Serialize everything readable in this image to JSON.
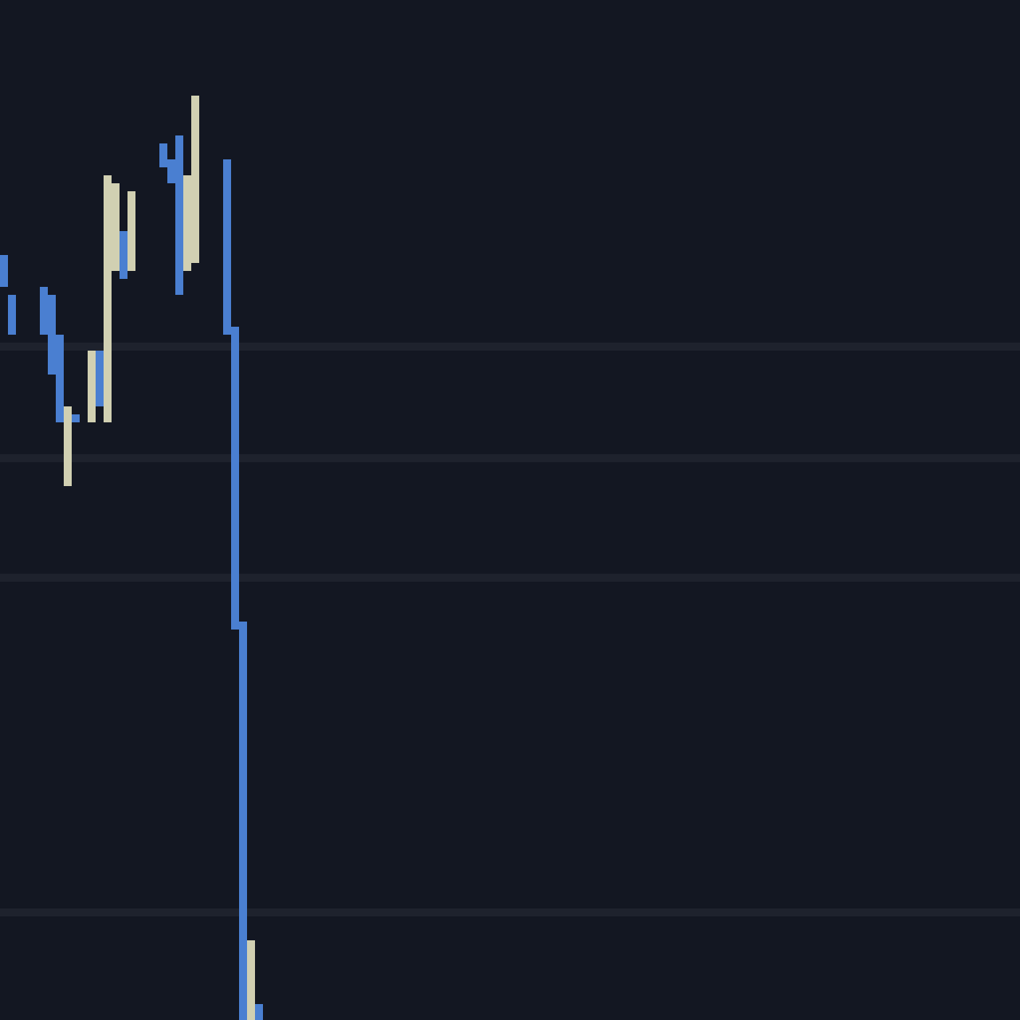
{
  "chart_data": {
    "type": "bar",
    "grid": true,
    "legend": "none",
    "xlim": [
      0,
      128
    ],
    "ylim": [
      0,
      128
    ],
    "colors": {
      "background": "#131722",
      "grid": "#1e222d",
      "up": "#d1d0b2",
      "down": "#4a7fd1"
    },
    "gridlines": [
      84,
      70,
      55,
      13
    ],
    "candles": [
      {
        "x": 0,
        "y0": 92.0,
        "y1": 96.0,
        "dir": "down"
      },
      {
        "x": 1,
        "y0": 91.0,
        "y1": 86.0,
        "dir": "down"
      },
      {
        "x": 5,
        "y0": 92.0,
        "y1": 86.0,
        "dir": "down"
      },
      {
        "x": 6,
        "y0": 91.0,
        "y1": 81.0,
        "dir": "down"
      },
      {
        "x": 7,
        "y0": 86.0,
        "y1": 75.0,
        "dir": "down"
      },
      {
        "x": 8,
        "y0": 77.0,
        "y1": 67.0,
        "dir": "up"
      },
      {
        "x": 9,
        "y0": 76.0,
        "y1": 75.0,
        "dir": "down"
      },
      {
        "x": 11,
        "y0": 75.0,
        "y1": 84.0,
        "dir": "up"
      },
      {
        "x": 12,
        "y0": 84.0,
        "y1": 77.0,
        "dir": "down"
      },
      {
        "x": 13,
        "y0": 75.0,
        "y1": 106.0,
        "dir": "up"
      },
      {
        "x": 14,
        "y0": 94.0,
        "y1": 105.0,
        "dir": "up"
      },
      {
        "x": 15,
        "y0": 99.0,
        "y1": 93.0,
        "dir": "down"
      },
      {
        "x": 16,
        "y0": 94.0,
        "y1": 104.0,
        "dir": "up"
      },
      {
        "x": 20,
        "y0": 110.0,
        "y1": 107.0,
        "dir": "down"
      },
      {
        "x": 21,
        "y0": 108.0,
        "y1": 105.0,
        "dir": "down"
      },
      {
        "x": 22,
        "y0": 111.0,
        "y1": 91.0,
        "dir": "down"
      },
      {
        "x": 23,
        "y0": 94.0,
        "y1": 106.0,
        "dir": "up"
      },
      {
        "x": 24,
        "y0": 95.0,
        "y1": 116.0,
        "dir": "up"
      },
      {
        "x": 28,
        "y0": 108.0,
        "y1": 86.0,
        "dir": "down"
      },
      {
        "x": 29,
        "y0": 87.0,
        "y1": 49.0,
        "dir": "down"
      },
      {
        "x": 30,
        "y0": 50.0,
        "y1": 0.0,
        "dir": "down"
      },
      {
        "x": 31,
        "y0": 0.0,
        "y1": 10.0,
        "dir": "up"
      },
      {
        "x": 32,
        "y0": 2.0,
        "y1": 0.0,
        "dir": "down"
      }
    ]
  }
}
